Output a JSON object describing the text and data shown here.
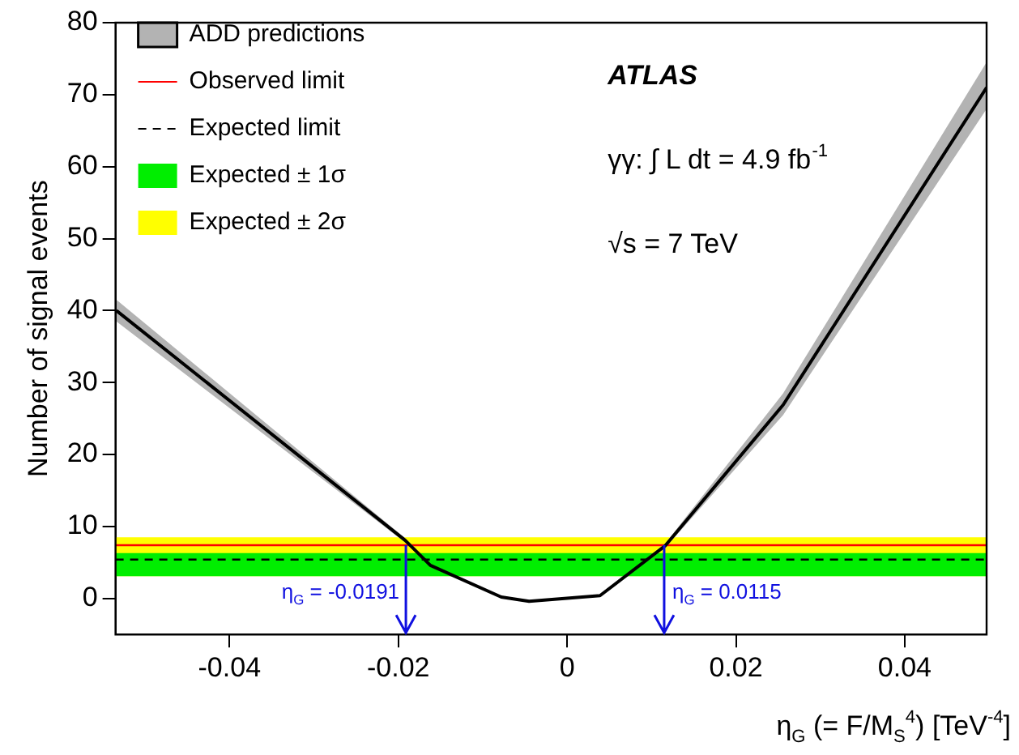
{
  "chart_data": {
    "type": "line",
    "xlabel": "η$_{G}$ (= F/M$_{S}$$^{4}$) [TeV$^{-4}$]",
    "ylabel": "Number of signal events",
    "x": [
      -0.0534,
      -0.0192,
      -0.0162,
      -0.0078,
      -0.0045,
      0.0039,
      0.0116,
      0.0256,
      0.0497
    ],
    "series": [
      {
        "name": "ADD predictions",
        "color": "#000000",
        "values": [
          40,
          8.1,
          4.6,
          0.2,
          -0.4,
          0.4,
          7.3,
          26.9,
          71
        ],
        "lower": [
          38.5,
          7.8,
          4.4,
          0.1,
          -0.5,
          0.3,
          7.0,
          25.5,
          68
        ],
        "upper": [
          41.5,
          8.4,
          4.8,
          0.3,
          -0.3,
          0.5,
          7.6,
          28.5,
          74.5
        ]
      }
    ],
    "ref_lines": [
      {
        "axis": "y",
        "value": 7.4,
        "label": "Observed limit",
        "color": "#ff0000",
        "line_style": "solid"
      },
      {
        "axis": "y",
        "value": 5.4,
        "label": "Expected limit",
        "color": "#000000",
        "line_style": "dashed"
      }
    ],
    "bands": [
      {
        "axis": "y",
        "from": 3.1,
        "to": 6.3,
        "label": "Expected ± 1σ",
        "color": "#00ee00"
      },
      {
        "axis": "y",
        "from": 3.1,
        "to": 8.5,
        "label": "Expected ± 2σ",
        "color": "#ffff00"
      }
    ],
    "annotations": [
      "ATLAS",
      "γγ: ∫ L dt = 4.9 fb$^{-1}$",
      "√s = 7 TeV",
      {
        "text": "η$_{G}$ = -0.0191",
        "x": -0.0191,
        "y": 7.4
      },
      {
        "text": "η$_{G}$ = 0.0115",
        "x": 0.0115,
        "y": 7.4
      }
    ],
    "xlim": [
      -0.0535,
      0.0497
    ],
    "ylim": [
      -5,
      80
    ],
    "xticks": [
      -0.04,
      -0.02,
      0,
      0.02,
      0.04
    ],
    "yticks": [
      0,
      10,
      20,
      30,
      40,
      50,
      60,
      70,
      80
    ],
    "grid": false,
    "legend": "top left",
    "marker": "none",
    "line_style": "solid"
  }
}
